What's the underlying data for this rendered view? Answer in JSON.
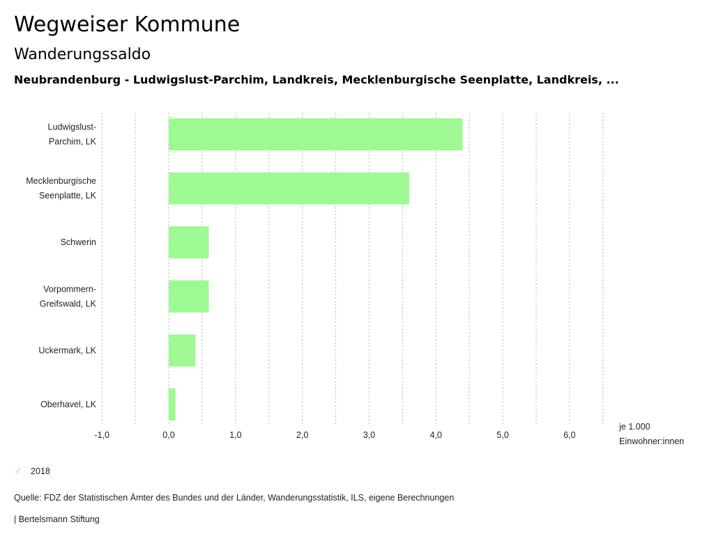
{
  "header": {
    "title": "Wegweiser Kommune",
    "subtitle": "Wanderungssaldo",
    "selection": "Neubrandenburg - Ludwigslust-Parchim, Landkreis, Mecklenburgische Seenplatte, Landkreis, ..."
  },
  "legend": {
    "items": [
      {
        "label": "2018",
        "icon": "check-icon",
        "color": "#9ef993"
      }
    ]
  },
  "footer": {
    "source": "Quelle: FDZ der Statistischen Ämter des Bundes und der Länder, Wanderungsstatistik, ILS, eigene Berechnungen",
    "credit": "| Bertelsmann Stiftung"
  },
  "chart_data": {
    "type": "bar",
    "orientation": "horizontal",
    "title": "Wanderungssaldo",
    "categories": [
      [
        "Ludwigslust-",
        "Parchim, LK"
      ],
      [
        "Mecklenburgische",
        "Seenplatte, LK"
      ],
      [
        "Schwerin"
      ],
      [
        "Vorpommern-",
        "Greifswald, LK"
      ],
      [
        "Uckermark, LK"
      ],
      [
        "Oberhavel, LK"
      ]
    ],
    "series": [
      {
        "name": "2018",
        "color": "#9ef993",
        "values": [
          4.4,
          3.6,
          0.6,
          0.6,
          0.4,
          0.1
        ]
      }
    ],
    "xlim": [
      -1.0,
      6.5
    ],
    "xticks": [
      -1.0,
      0.0,
      1.0,
      2.0,
      3.0,
      4.0,
      5.0,
      6.0
    ],
    "xtick_labels": [
      "-1,0",
      "0,0",
      "1,0",
      "2,0",
      "3,0",
      "4,0",
      "5,0",
      "6,0"
    ],
    "gridlines_minor_step": 0.5,
    "grid": true,
    "xlabel": [
      "je 1.000",
      "Einwohner:innen"
    ],
    "ylabel": "",
    "legend_position": "bottom-left"
  }
}
